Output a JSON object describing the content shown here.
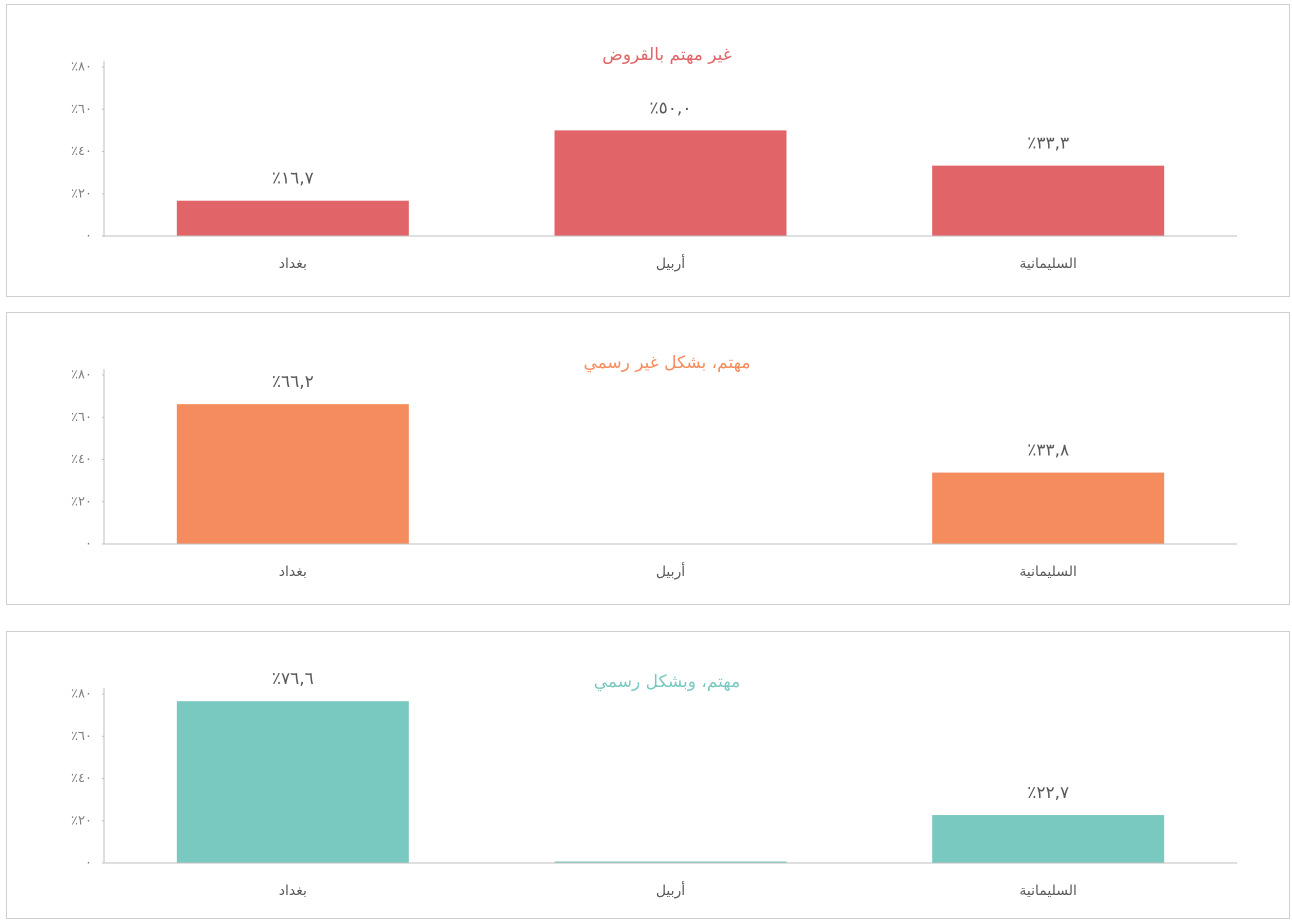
{
  "chart_data": [
    {
      "type": "bar",
      "title": "غير مهتم بالقروض",
      "color": "#e06468",
      "categories": [
        "بغداد",
        "أربيل",
        "السليمانية"
      ],
      "values": [
        16.7,
        50.0,
        33.3
      ],
      "value_labels": [
        "٪١٦,٧",
        "٪٥٠,٠",
        "٪٣٣,٣"
      ],
      "ylim": [
        0,
        80
      ],
      "yticks": [
        {
          "value": 0,
          "label": "٠"
        },
        {
          "value": 20,
          "label": "٪٢٠"
        },
        {
          "value": 40,
          "label": "٪٤٠"
        },
        {
          "value": 60,
          "label": "٪٦٠"
        },
        {
          "value": 80,
          "label": "٪٨٠"
        }
      ]
    },
    {
      "type": "bar",
      "title": "مهتم، بشكل غير رسمي",
      "color": "#f58c5d",
      "categories": [
        "بغداد",
        "أربيل",
        "السليمانية"
      ],
      "values": [
        66.2,
        null,
        33.8
      ],
      "value_labels": [
        "٪٦٦,٢",
        null,
        "٪٣٣,٨"
      ],
      "ylim": [
        0,
        80
      ],
      "yticks": [
        {
          "value": 0,
          "label": "٠"
        },
        {
          "value": 20,
          "label": "٪٢٠"
        },
        {
          "value": 40,
          "label": "٪٤٠"
        },
        {
          "value": 60,
          "label": "٪٦٠"
        },
        {
          "value": 80,
          "label": "٪٨٠"
        }
      ]
    },
    {
      "type": "bar",
      "title": "مهتم، وبشكل رسمي",
      "color": "#7ac9c1",
      "categories": [
        "بغداد",
        "أربيل",
        "السليمانية"
      ],
      "values": [
        76.6,
        0.7,
        22.7
      ],
      "value_labels": [
        "٪٧٦,٦",
        null,
        "٪٢٢,٧"
      ],
      "ylim": [
        0,
        80
      ],
      "yticks": [
        {
          "value": 0,
          "label": "٠"
        },
        {
          "value": 20,
          "label": "٪٢٠"
        },
        {
          "value": 40,
          "label": "٪٤٠"
        },
        {
          "value": 60,
          "label": "٪٦٠"
        },
        {
          "value": 80,
          "label": "٪٨٠"
        }
      ]
    }
  ]
}
